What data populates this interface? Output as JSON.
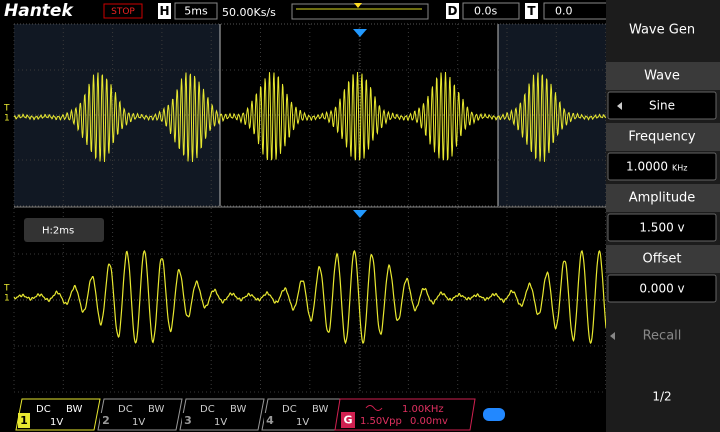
{
  "header": {
    "brand": "Hantek",
    "status": "STOP",
    "timebase_label": "H",
    "timebase": "5ms",
    "sample_rate": "50.00Ks/s",
    "delay_label": "D",
    "delay": "0.0s",
    "trigger_label": "T",
    "trigger": "0.0"
  },
  "zoom": {
    "label": "H:2ms"
  },
  "menu": {
    "title": "Wave Gen",
    "items": [
      {
        "label": "Wave",
        "value": "Sine"
      },
      {
        "label": "Frequency",
        "value": "1.0000",
        "unit": "KHz"
      },
      {
        "label": "Amplitude",
        "value": "1.500 v"
      },
      {
        "label": "Offset",
        "value": "0.000 v"
      },
      {
        "label": "Recall"
      }
    ],
    "page": "1/2"
  },
  "channels": [
    {
      "number": "1",
      "coupling": "DC",
      "bw": "BW",
      "scale": "1V"
    },
    {
      "number": "2",
      "coupling": "DC",
      "bw": "BW",
      "scale": "1V"
    },
    {
      "number": "3",
      "coupling": "DC",
      "bw": "BW",
      "scale": "1V"
    },
    {
      "number": "4",
      "coupling": "DC",
      "bw": "BW",
      "scale": "1V"
    }
  ],
  "generator": {
    "label": "G",
    "frequency": "1.00KHz",
    "amplitude": "1.50Vpp",
    "offset": "0.00mv"
  }
}
